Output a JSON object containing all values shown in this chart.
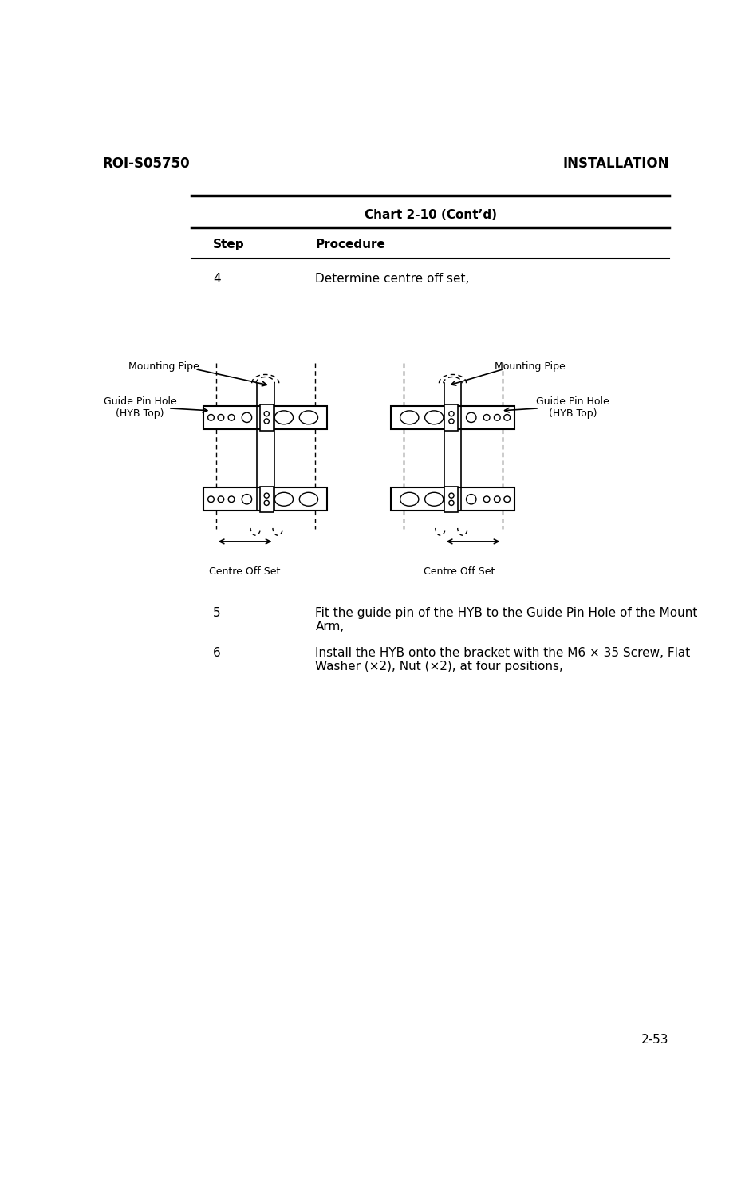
{
  "page_id_left": "ROI-S05750",
  "page_id_right": "INSTALLATION",
  "page_num": "2-53",
  "chart_title": "Chart 2-10 (Cont’d)",
  "col_step": "Step",
  "col_procedure": "Procedure",
  "step4_text": "4",
  "step4_desc": "Determine centre off set,",
  "step5_text": "5",
  "step5_desc": "Fit the guide pin of the HYB to the Guide Pin Hole of the Mount\nArm,",
  "step6_text": "6",
  "step6_desc": "Install the HYB onto the bracket with the M6 × 35 Screw, Flat\nWasher (×2), Nut (×2), at four positions,",
  "label_mounting_pipe_left": "Mounting Pipe",
  "label_mounting_pipe_right": "Mounting Pipe",
  "label_guide_pin_left": "Guide Pin Hole\n(HYB Top)",
  "label_guide_pin_right": "Guide Pin Hole\n(HYB Top)",
  "label_centre_left": "Centre Off Set",
  "label_centre_right": "Centre Off Set",
  "bg_color": "#ffffff",
  "text_color": "#000000",
  "line_color": "#000000"
}
